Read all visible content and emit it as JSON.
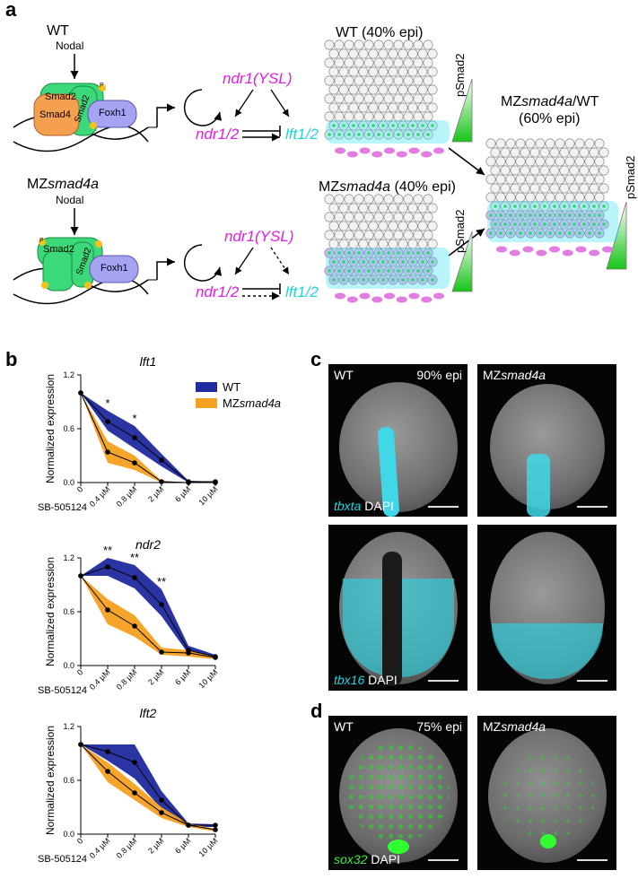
{
  "panel_a": {
    "label": "a",
    "top": {
      "condition": "WT",
      "ligand": "Nodal",
      "protein_smad2_1": "Smad2",
      "protein_smad2_2": "Smad2",
      "protein_smad4": "Smad4",
      "protein_foxh1": "Foxh1",
      "p": "P",
      "ndr1_ysl": "ndr1(YSL)",
      "ndr12": "ndr1/2",
      "lft12": "lft1/2",
      "embryo_title": "WT (40% epi)",
      "psmad2": "pSmad2"
    },
    "bottom": {
      "condition_prefix": "MZ",
      "condition_gene": "smad4a",
      "ligand": "Nodal",
      "protein_smad2_1": "Smad2",
      "protein_smad2_2": "Smad2",
      "protein_foxh1": "Foxh1",
      "p": "P",
      "ndr1_ysl": "ndr1(YSL)",
      "ndr12": "ndr1/2",
      "lft12": "lft1/2",
      "embryo_title_prefix": "MZ",
      "embryo_title_gene": "smad4a",
      "embryo_title_suffix": " (40% epi)",
      "psmad2": "pSmad2"
    },
    "right": {
      "title_prefix": "MZ",
      "title_gene": "smad4a",
      "title_suffix": "/WT",
      "subtitle": "(60% epi)",
      "psmad2": "pSmad2"
    }
  },
  "panel_b": {
    "label": "b",
    "legend": {
      "wt": "WT",
      "mz_prefix": "MZ",
      "mz_gene": "smad4a"
    },
    "treatment": "SB-505124",
    "ylabel": "Normalized expression"
  },
  "chart_data": [
    {
      "type": "line",
      "title": "lft1",
      "categories": [
        "0",
        "0.4 µM",
        "0.8 µM",
        "2 µM",
        "6 µM",
        "10 µM"
      ],
      "ylabel": "Normalized expression",
      "yticks": [
        "0.0",
        "0.6",
        "1.2"
      ],
      "ylim": [
        0,
        1.2
      ],
      "series": [
        {
          "name": "WT",
          "color": "#1f2a9e",
          "values": [
            1.0,
            0.68,
            0.5,
            0.25,
            0.01,
            0.01
          ],
          "upper": [
            1.0,
            0.8,
            0.63,
            0.32,
            0.02,
            0.01
          ],
          "lower": [
            1.0,
            0.58,
            0.38,
            0.18,
            0.0,
            0.0
          ]
        },
        {
          "name": "MZsmad4a",
          "color": "#f5a020",
          "values": [
            1.0,
            0.34,
            0.22,
            0.01,
            0.0,
            0.0
          ],
          "upper": [
            1.0,
            0.46,
            0.3,
            0.02,
            0.0,
            0.0
          ],
          "lower": [
            1.0,
            0.22,
            0.14,
            0.0,
            0.0,
            0.0
          ]
        }
      ],
      "annotations": [
        {
          "x": "0.4 µM",
          "text": "*"
        },
        {
          "x": "0.8 µM",
          "text": "*"
        }
      ]
    },
    {
      "type": "line",
      "title": "ndr2",
      "categories": [
        "0",
        "0.4 µM",
        "0.8 µM",
        "2 µM",
        "6 µM",
        "10 µM"
      ],
      "ylabel": "Normalized expression",
      "yticks": [
        "0.0",
        "0.6",
        "1.2"
      ],
      "ylim": [
        0,
        1.2
      ],
      "series": [
        {
          "name": "WT",
          "color": "#1f2a9e",
          "values": [
            1.0,
            1.1,
            0.98,
            0.68,
            0.17,
            0.1
          ],
          "upper": [
            1.0,
            1.2,
            1.12,
            0.85,
            0.22,
            0.12
          ],
          "lower": [
            1.0,
            1.0,
            0.86,
            0.55,
            0.13,
            0.08
          ]
        },
        {
          "name": "MZsmad4a",
          "color": "#f5a020",
          "values": [
            1.0,
            0.62,
            0.44,
            0.15,
            0.14,
            0.09
          ],
          "upper": [
            1.0,
            0.74,
            0.56,
            0.2,
            0.17,
            0.1
          ],
          "lower": [
            1.0,
            0.46,
            0.32,
            0.12,
            0.1,
            0.07
          ]
        }
      ],
      "annotations": [
        {
          "x": "0.4 µM",
          "text": "**"
        },
        {
          "x": "0.8 µM",
          "text": "**"
        },
        {
          "x": "2 µM",
          "text": "**"
        }
      ]
    },
    {
      "type": "line",
      "title": "lft2",
      "categories": [
        "0",
        "0.4 µM",
        "0.8 µM",
        "2 µM",
        "6 µM",
        "10 µM"
      ],
      "ylabel": "Normalized expression",
      "yticks": [
        "0.0",
        "0.6",
        "1.2"
      ],
      "ylim": [
        0,
        1.2
      ],
      "series": [
        {
          "name": "WT",
          "color": "#1f2a9e",
          "values": [
            1.0,
            0.92,
            0.8,
            0.38,
            0.1,
            0.1
          ],
          "upper": [
            1.0,
            1.0,
            1.0,
            0.48,
            0.12,
            0.11
          ],
          "lower": [
            1.0,
            0.82,
            0.62,
            0.28,
            0.08,
            0.08
          ]
        },
        {
          "name": "MZsmad4a",
          "color": "#f5a020",
          "values": [
            1.0,
            0.7,
            0.46,
            0.24,
            0.1,
            0.05
          ],
          "upper": [
            1.0,
            0.8,
            0.56,
            0.3,
            0.12,
            0.06
          ],
          "lower": [
            1.0,
            0.58,
            0.38,
            0.18,
            0.08,
            0.03
          ]
        }
      ],
      "annotations": []
    }
  ],
  "panel_c": {
    "label": "c",
    "wt": "WT",
    "stage": "90% epi",
    "mz_prefix": "MZ",
    "mz_gene": "smad4a",
    "gene1": "tbxta",
    "gene2": "tbx16",
    "dapi": "DAPI"
  },
  "panel_d": {
    "label": "d",
    "wt": "WT",
    "stage": "75% epi",
    "mz_prefix": "MZ",
    "mz_gene": "smad4a",
    "gene": "sox32",
    "dapi": "DAPI"
  }
}
